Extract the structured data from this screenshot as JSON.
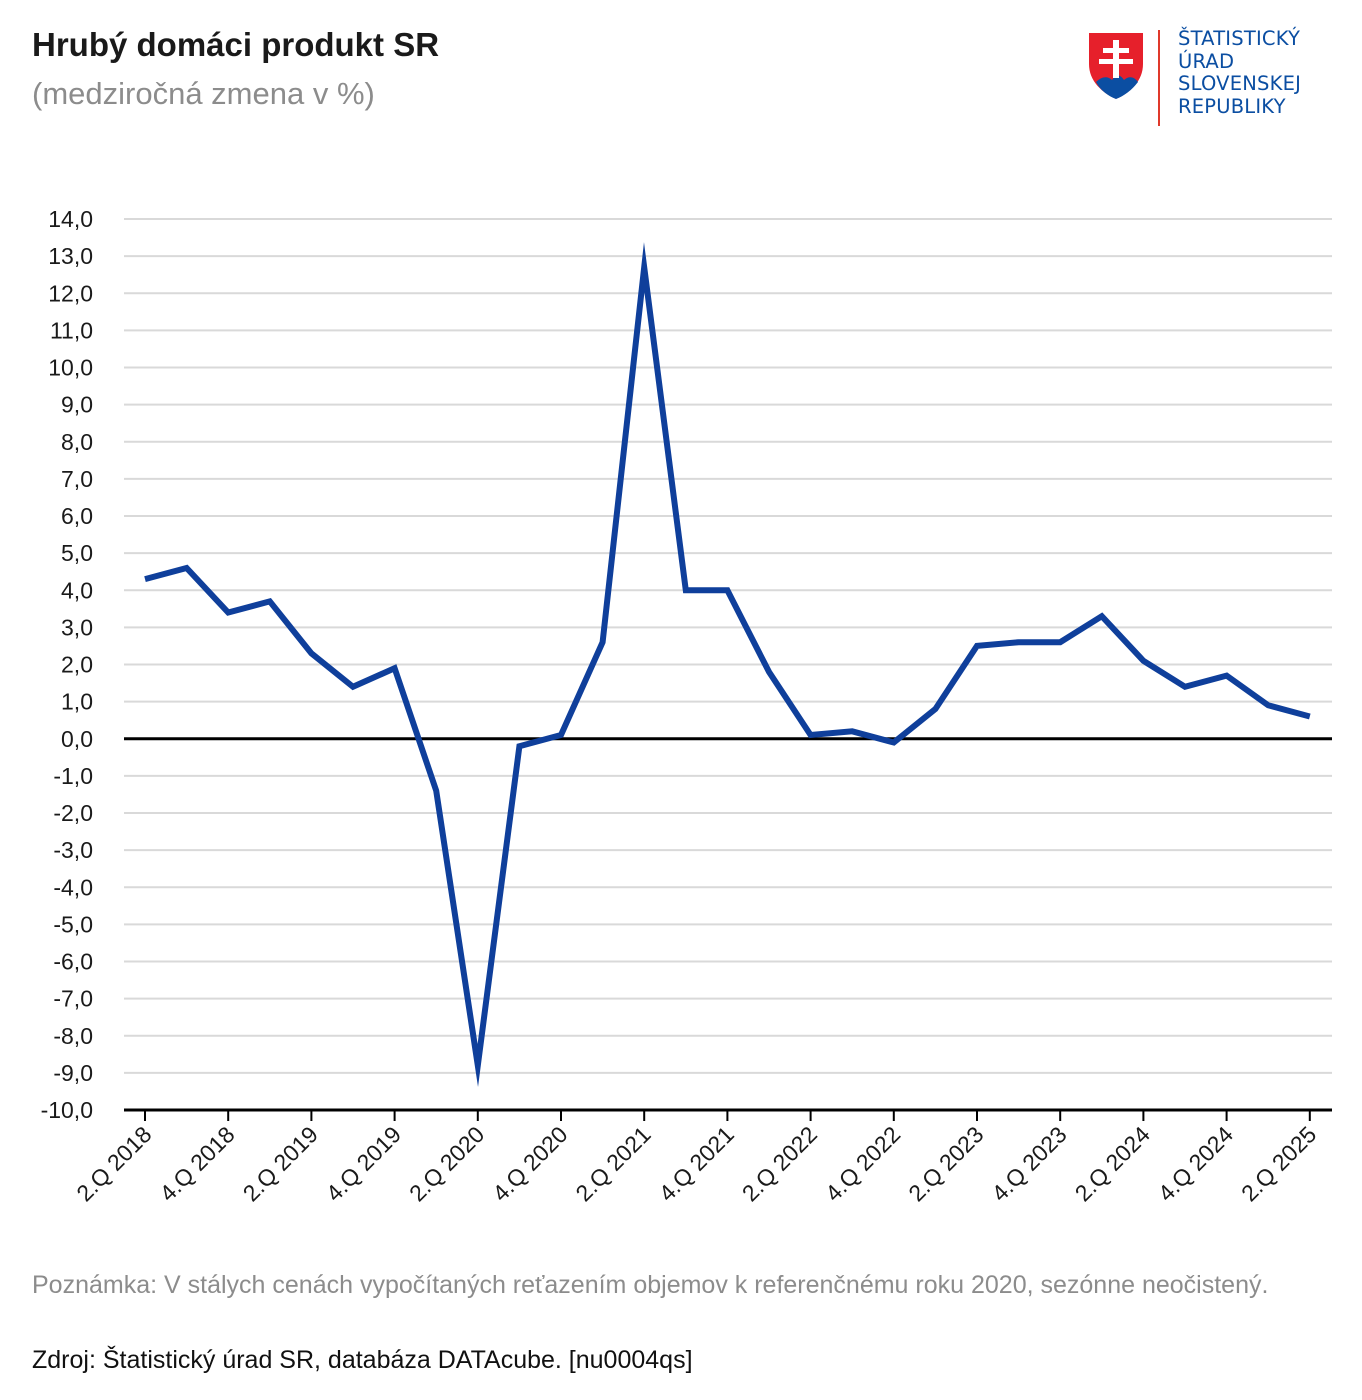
{
  "header": {
    "title": "Hrubý domáci produkt SR",
    "subtitle": "(medziročná zmena v %)"
  },
  "logo": {
    "lines": [
      "ŠTATISTICKÝ",
      "ÚRAD",
      "SLOVENSKEJ",
      "REPUBLIKY"
    ]
  },
  "footer": {
    "note": "Poznámka: V stálych cenách vypočítaných reťazením objemov k referenčnému roku 2020, sezónne neočistený.",
    "source": "Zdroj: Štatistický úrad SR, databáza DATAcube. [nu0004qs]"
  },
  "chart_data": {
    "type": "line",
    "title": "Hrubý domáci produkt SR",
    "subtitle": "(medziročná zmena v %)",
    "xlabel": "",
    "ylabel": "",
    "ylim": [
      -10,
      14
    ],
    "ytick_step": 1,
    "ytick_labels": [
      "14,0",
      "13,0",
      "12,0",
      "11,0",
      "10,0",
      "9,0",
      "8,0",
      "7,0",
      "6,0",
      "5,0",
      "4,0",
      "3,0",
      "2,0",
      "1,0",
      "0,0",
      "-1,0",
      "-2,0",
      "-3,0",
      "-4,0",
      "-5,0",
      "-6,0",
      "-7,0",
      "-8,0",
      "-9,0",
      "-10,0"
    ],
    "grid": true,
    "legend": "none",
    "line_color": "#0f3f9b",
    "categories": [
      "2.Q 2018",
      "3.Q 2018",
      "4.Q 2018",
      "1.Q 2019",
      "2.Q 2019",
      "3.Q 2019",
      "4.Q 2019",
      "1.Q 2020",
      "2.Q 2020",
      "3.Q 2020",
      "4.Q 2020",
      "1.Q 2021",
      "2.Q 2021",
      "3.Q 2021",
      "4.Q 2021",
      "1.Q 2022",
      "2.Q 2022",
      "3.Q 2022",
      "4.Q 2022",
      "1.Q 2023",
      "2.Q 2023",
      "3.Q 2023",
      "4.Q 2023",
      "1.Q 2024",
      "2.Q 2024",
      "3.Q 2024",
      "4.Q 2024",
      "1.Q 2025",
      "2.Q 2025"
    ],
    "xtick_labels": [
      "2.Q 2018",
      "4.Q 2018",
      "2.Q 2019",
      "4.Q 2019",
      "2.Q 2020",
      "4.Q 2020",
      "2.Q 2021",
      "4.Q 2021",
      "2.Q 2022",
      "4.Q 2022",
      "2.Q 2023",
      "4.Q 2023",
      "2.Q 2024",
      "4.Q 2024",
      "2.Q 2025"
    ],
    "values": [
      4.3,
      4.6,
      3.4,
      3.7,
      2.3,
      1.4,
      1.9,
      -1.4,
      -8.8,
      -0.2,
      0.1,
      2.6,
      12.7,
      4.0,
      4.0,
      1.8,
      0.1,
      0.2,
      -0.1,
      0.8,
      2.5,
      2.6,
      2.6,
      3.3,
      2.1,
      1.4,
      1.7,
      0.9,
      0.6
    ]
  }
}
